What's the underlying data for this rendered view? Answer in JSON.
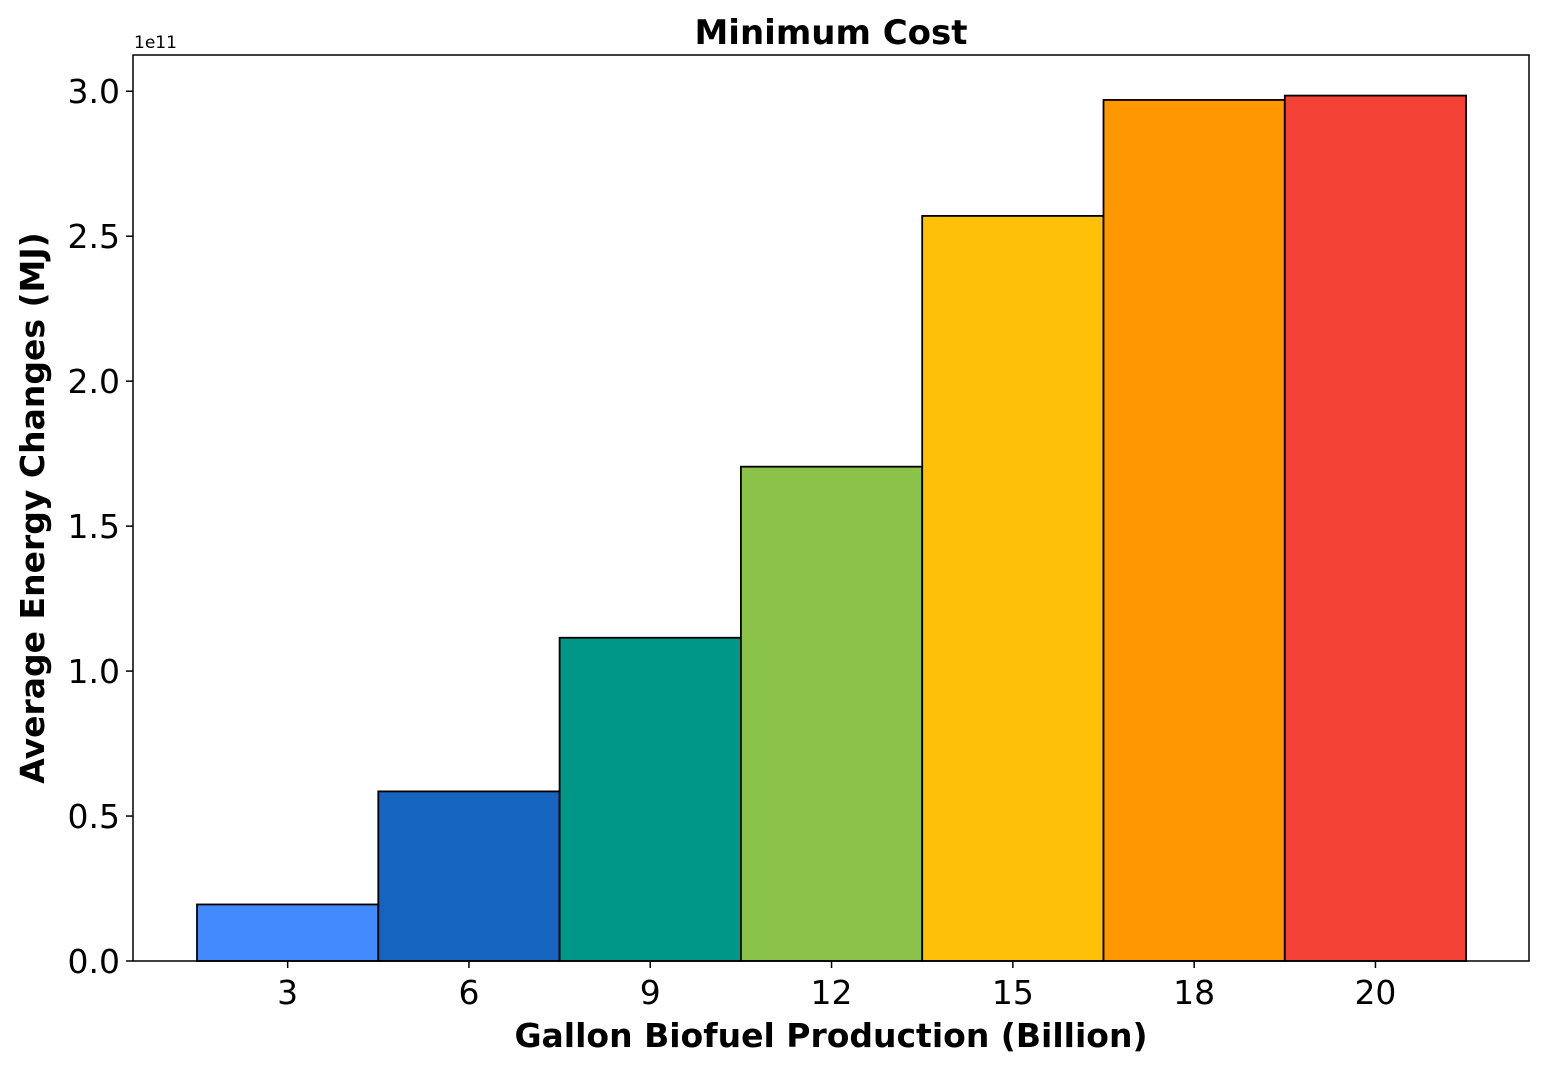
{
  "chart_data": {
    "type": "bar",
    "title": "Minimum Cost",
    "xlabel": "Gallon Biofuel Production (Billion)",
    "ylabel": "Average Energy Changes (MJ)",
    "y_offset_label": "1e11",
    "categories": [
      "3",
      "6",
      "9",
      "12",
      "15",
      "18",
      "20"
    ],
    "values": [
      19500000000,
      58500000000,
      111500000000,
      170500000000,
      257000000000,
      297000000000,
      298500000000
    ],
    "colors": [
      "#448aff",
      "#1565c0",
      "#009688",
      "#8bc34a",
      "#ffc107",
      "#ff9800",
      "#f44336"
    ],
    "ylim": [
      0,
      312500000000
    ],
    "yticks": [
      0,
      50000000000,
      100000000000,
      150000000000,
      200000000000,
      250000000000,
      300000000000
    ],
    "ytick_labels": [
      "0.0",
      "0.5",
      "1.0",
      "1.5",
      "2.0",
      "2.5",
      "3.0"
    ],
    "grid": false,
    "legend": "none"
  }
}
